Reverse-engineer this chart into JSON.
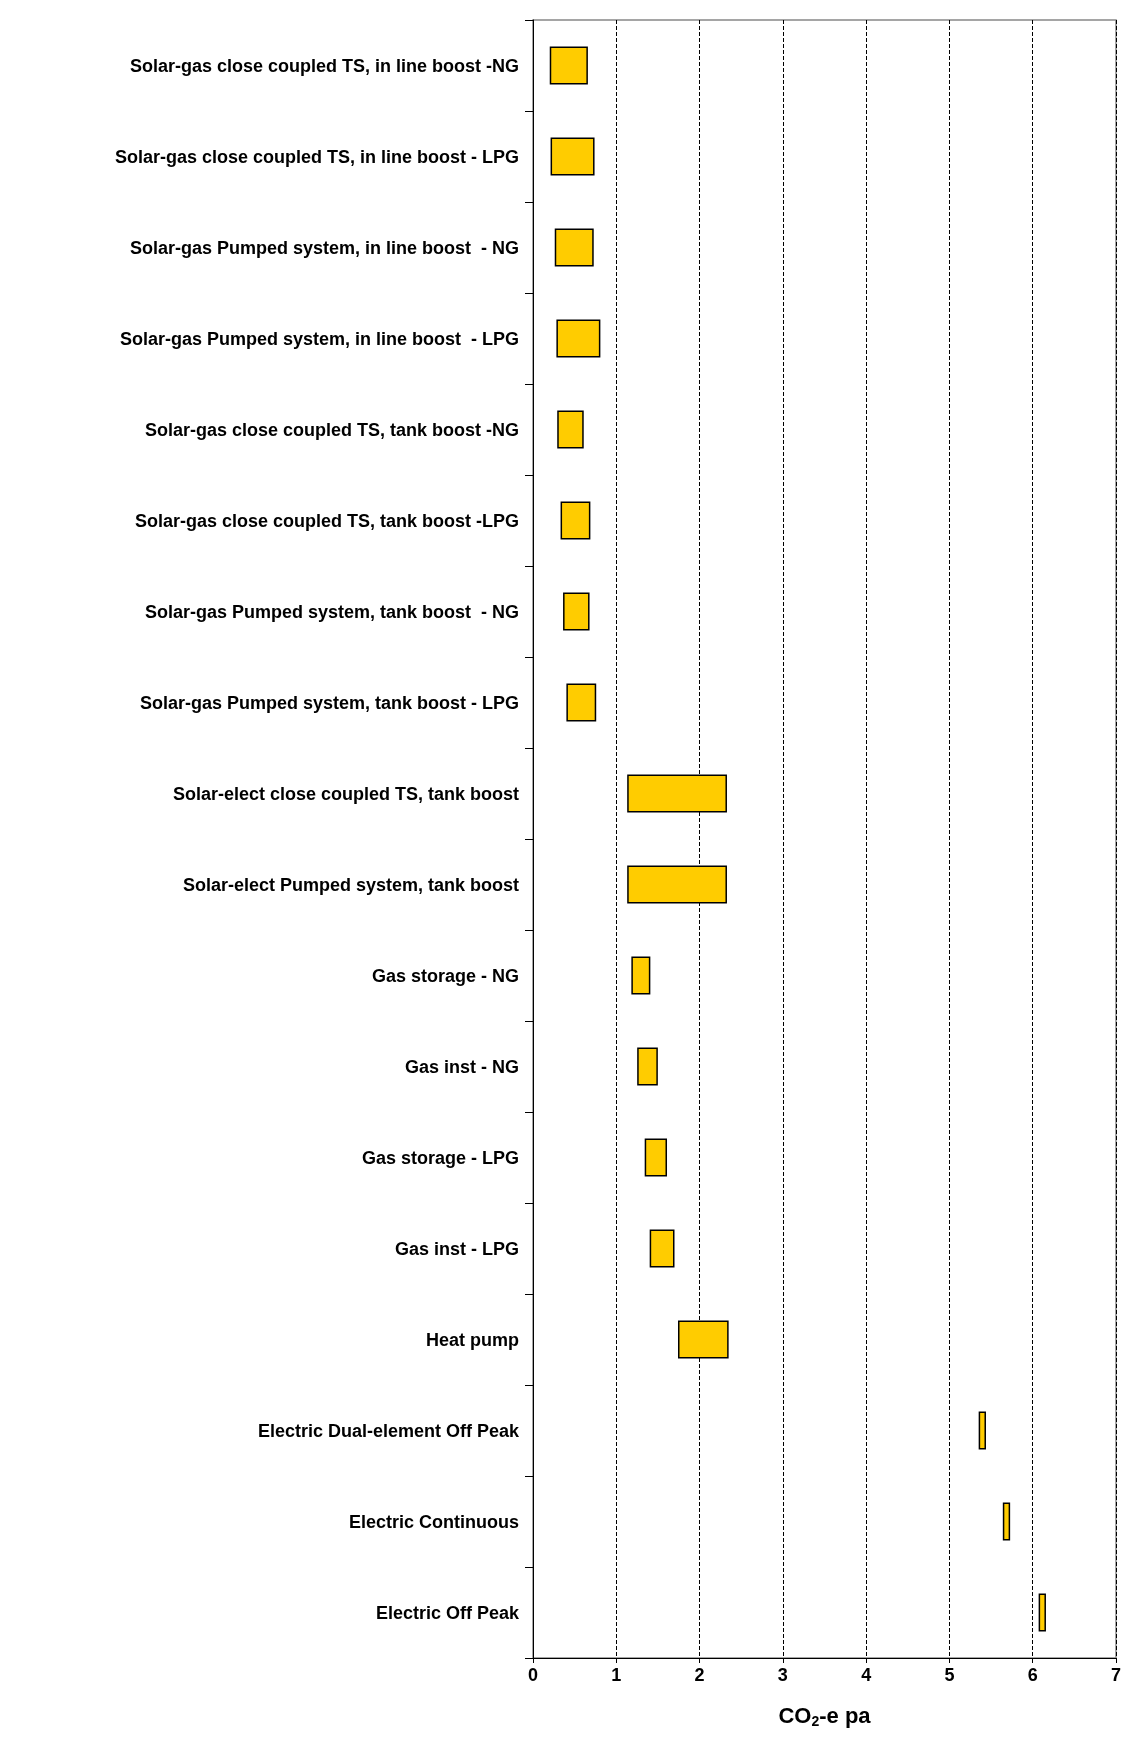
{
  "chart_data": {
    "type": "bar",
    "orientation": "horizontal",
    "xlabel": "CO$_{2}$-e pa",
    "categories": [
      "Solar-gas close coupled TS, in line boost -NG",
      "Solar-gas close coupled TS, in line boost - LPG",
      "Solar-gas Pumped system, in line boost  - NG",
      "Solar-gas Pumped system, in line boost  - LPG",
      "Solar-gas close coupled TS, tank boost -NG",
      "Solar-gas close coupled TS, tank boost -LPG",
      "Solar-gas Pumped system, tank boost  - NG",
      "Solar-gas Pumped system, tank boost - LPG",
      "Solar-elect close coupled TS, tank boost",
      "Solar-elect Pumped system, tank boost",
      "Gas storage - NG",
      "Gas inst - NG",
      "Gas storage - LPG",
      "Gas inst - LPG",
      "Heat pump",
      "Electric Dual-element Off Peak",
      "Electric Continuous",
      "Electric Off Peak"
    ],
    "base": [
      0.21,
      0.22,
      0.27,
      0.29,
      0.3,
      0.34,
      0.37,
      0.41,
      1.14,
      1.14,
      1.19,
      1.26,
      1.35,
      1.41,
      1.75,
      5.36,
      5.65,
      6.08
    ],
    "values": [
      0.44,
      0.51,
      0.45,
      0.51,
      0.3,
      0.34,
      0.3,
      0.34,
      1.18,
      1.18,
      0.21,
      0.23,
      0.25,
      0.28,
      0.59,
      0.07,
      0.07,
      0.07
    ],
    "color": "#ffcc00",
    "xlim": [
      0,
      7
    ],
    "xticks": [
      0,
      1,
      2,
      3,
      4,
      5,
      6,
      7
    ],
    "grid": "x"
  }
}
